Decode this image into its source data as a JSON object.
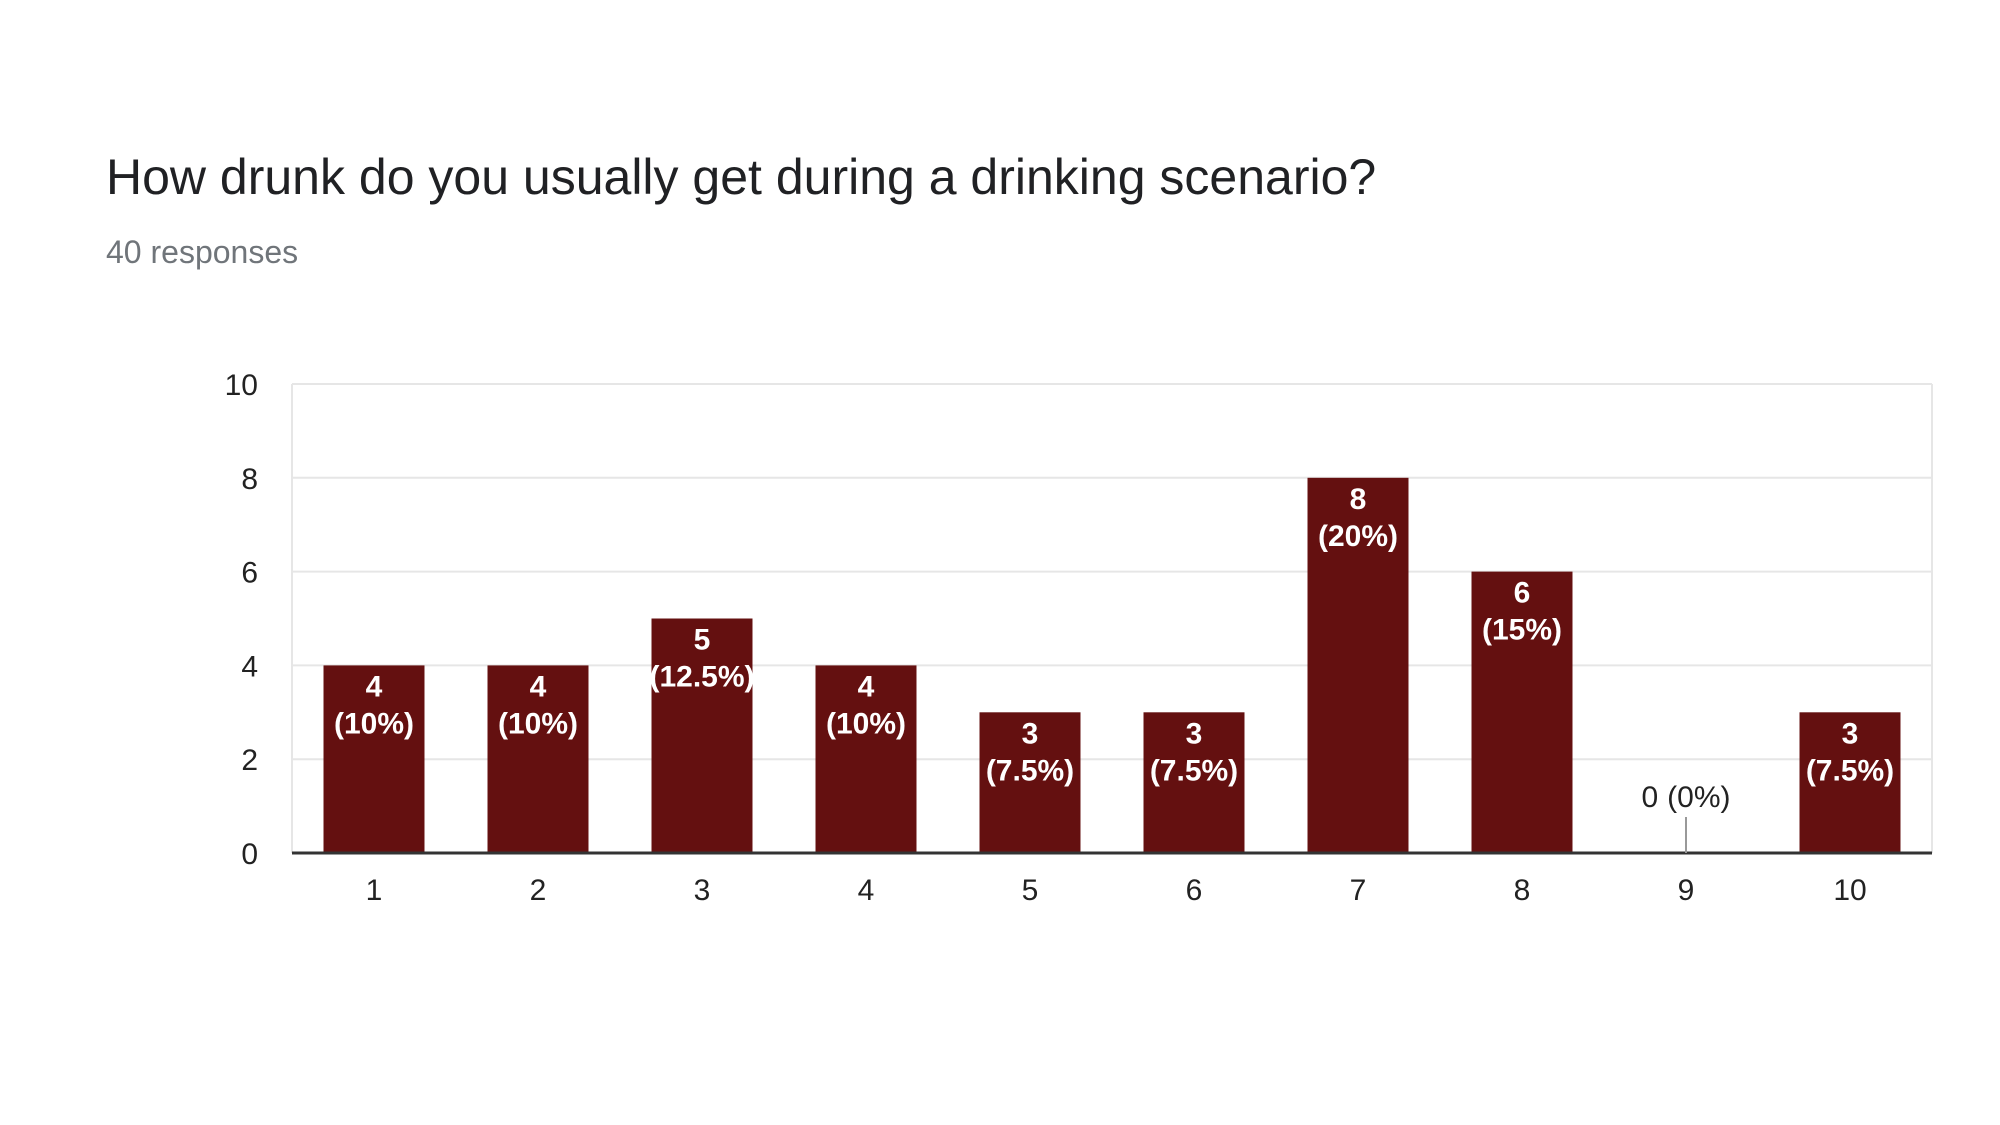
{
  "question": {
    "title": "How drunk do you usually get during a drinking scenario?",
    "responses": "40 responses"
  },
  "colors": {
    "bar": "#641010",
    "grid": "#e6e6e6",
    "axis": "#333333"
  },
  "chart_data": {
    "type": "bar",
    "title": "How drunk do you usually get during a drinking scenario?",
    "subtitle": "40 responses",
    "xlabel": "",
    "ylabel": "",
    "ylim": [
      0,
      10
    ],
    "yticks": [
      0,
      2,
      4,
      6,
      8,
      10
    ],
    "grid": true,
    "categories": [
      "1",
      "2",
      "3",
      "4",
      "5",
      "6",
      "7",
      "8",
      "9",
      "10"
    ],
    "values": [
      4,
      4,
      5,
      4,
      3,
      3,
      8,
      6,
      0,
      3
    ],
    "percent_labels": [
      "(10%)",
      "(10%)",
      "(12.5%)",
      "(10%)",
      "(7.5%)",
      "(7.5%)",
      "(20%)",
      "(15%)",
      "(0%)",
      "(7.5%)"
    ]
  }
}
